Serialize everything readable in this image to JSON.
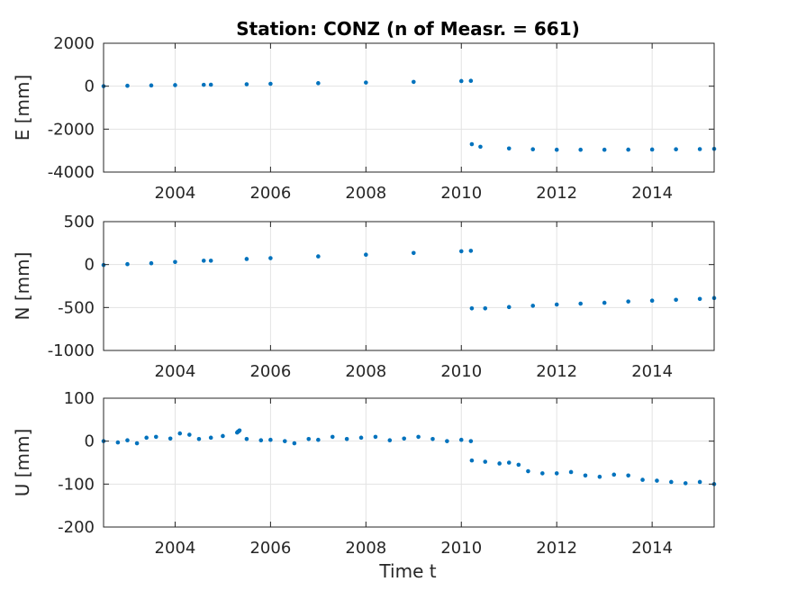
{
  "chart_data": {
    "type": "scatter",
    "title": "Station: CONZ (n of Measr. = 661)",
    "xlabel": "Time t",
    "series_color": "#0072BD",
    "grid": true,
    "xlim": [
      2002.5,
      2015.3
    ],
    "xticks": [
      2004,
      2006,
      2008,
      2010,
      2012,
      2014
    ],
    "xticklabels": [
      "2004",
      "2006",
      "2008",
      "2010",
      "2012",
      "2014"
    ],
    "panels": [
      {
        "ylabel": "E [mm]",
        "ylim": [
          -4000,
          2000
        ],
        "yticks": [
          -4000,
          -2000,
          0,
          2000
        ],
        "yticklabels": [
          "-4000",
          "-2000",
          "0",
          "2000"
        ],
        "points": [
          [
            2002.5,
            0
          ],
          [
            2003.0,
            20
          ],
          [
            2003.5,
            35
          ],
          [
            2004.0,
            50
          ],
          [
            2004.6,
            65
          ],
          [
            2004.75,
            70
          ],
          [
            2005.5,
            90
          ],
          [
            2006.0,
            110
          ],
          [
            2007.0,
            140
          ],
          [
            2008.0,
            170
          ],
          [
            2009.0,
            200
          ],
          [
            2010.0,
            240
          ],
          [
            2010.2,
            250
          ],
          [
            2010.22,
            -2700
          ],
          [
            2010.4,
            -2820
          ],
          [
            2011.0,
            -2900
          ],
          [
            2011.5,
            -2940
          ],
          [
            2012.0,
            -2960
          ],
          [
            2012.5,
            -2960
          ],
          [
            2013.0,
            -2960
          ],
          [
            2013.5,
            -2955
          ],
          [
            2014.0,
            -2950
          ],
          [
            2014.5,
            -2940
          ],
          [
            2015.0,
            -2930
          ],
          [
            2015.3,
            -2920
          ]
        ]
      },
      {
        "ylabel": "N [mm]",
        "ylim": [
          -1000,
          500
        ],
        "yticks": [
          -1000,
          -500,
          0,
          500
        ],
        "yticklabels": [
          "-1000",
          "-500",
          "0",
          "500"
        ],
        "points": [
          [
            2002.5,
            -5
          ],
          [
            2003.0,
            5
          ],
          [
            2003.5,
            15
          ],
          [
            2004.0,
            30
          ],
          [
            2004.6,
            45
          ],
          [
            2004.75,
            45
          ],
          [
            2005.5,
            65
          ],
          [
            2006.0,
            75
          ],
          [
            2007.0,
            95
          ],
          [
            2008.0,
            115
          ],
          [
            2009.0,
            135
          ],
          [
            2010.0,
            155
          ],
          [
            2010.2,
            160
          ],
          [
            2010.22,
            -510
          ],
          [
            2010.5,
            -510
          ],
          [
            2011.0,
            -495
          ],
          [
            2011.5,
            -480
          ],
          [
            2012.0,
            -465
          ],
          [
            2012.5,
            -455
          ],
          [
            2013.0,
            -445
          ],
          [
            2013.5,
            -430
          ],
          [
            2014.0,
            -420
          ],
          [
            2014.5,
            -410
          ],
          [
            2015.0,
            -400
          ],
          [
            2015.3,
            -390
          ]
        ]
      },
      {
        "ylabel": "U [mm]",
        "ylim": [
          -200,
          100
        ],
        "yticks": [
          -200,
          -100,
          0,
          100
        ],
        "yticklabels": [
          "-200",
          "-100",
          "0",
          "100"
        ],
        "points": [
          [
            2002.5,
            0
          ],
          [
            2002.8,
            -3
          ],
          [
            2003.0,
            2
          ],
          [
            2003.2,
            -5
          ],
          [
            2003.4,
            8
          ],
          [
            2003.6,
            10
          ],
          [
            2003.9,
            6
          ],
          [
            2004.1,
            18
          ],
          [
            2004.3,
            15
          ],
          [
            2004.5,
            5
          ],
          [
            2004.75,
            8
          ],
          [
            2005.0,
            12
          ],
          [
            2005.3,
            20
          ],
          [
            2005.35,
            25
          ],
          [
            2005.5,
            5
          ],
          [
            2005.8,
            2
          ],
          [
            2006.0,
            3
          ],
          [
            2006.3,
            0
          ],
          [
            2006.5,
            -5
          ],
          [
            2006.8,
            5
          ],
          [
            2007.0,
            3
          ],
          [
            2007.3,
            10
          ],
          [
            2007.6,
            5
          ],
          [
            2007.9,
            8
          ],
          [
            2008.2,
            10
          ],
          [
            2008.5,
            2
          ],
          [
            2008.8,
            6
          ],
          [
            2009.1,
            10
          ],
          [
            2009.4,
            5
          ],
          [
            2009.7,
            0
          ],
          [
            2010.0,
            3
          ],
          [
            2010.2,
            0
          ],
          [
            2010.22,
            -45
          ],
          [
            2010.5,
            -48
          ],
          [
            2010.8,
            -52
          ],
          [
            2011.0,
            -50
          ],
          [
            2011.2,
            -55
          ],
          [
            2011.4,
            -70
          ],
          [
            2011.7,
            -75
          ],
          [
            2012.0,
            -75
          ],
          [
            2012.3,
            -72
          ],
          [
            2012.6,
            -80
          ],
          [
            2012.9,
            -83
          ],
          [
            2013.2,
            -78
          ],
          [
            2013.5,
            -80
          ],
          [
            2013.8,
            -90
          ],
          [
            2014.1,
            -92
          ],
          [
            2014.4,
            -95
          ],
          [
            2014.7,
            -98
          ],
          [
            2015.0,
            -95
          ],
          [
            2015.3,
            -100
          ]
        ]
      }
    ]
  }
}
